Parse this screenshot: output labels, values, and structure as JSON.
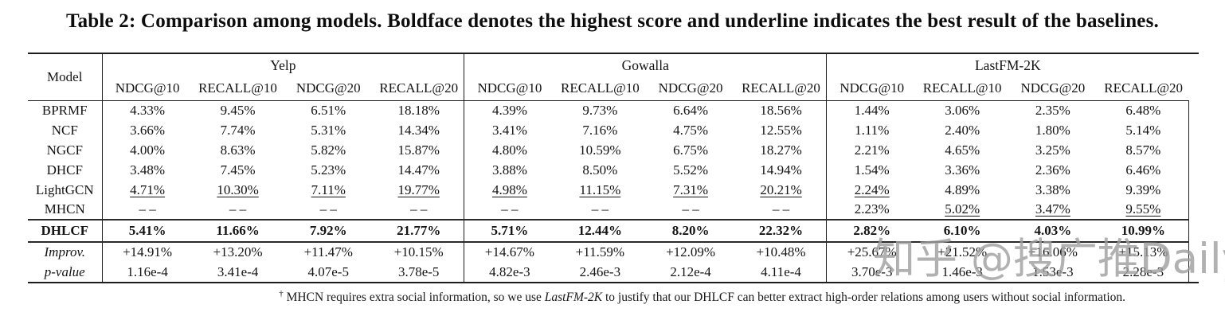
{
  "title": "Table 2: Comparison among models. Boldface denotes the highest score and underline indicates the best result of the baselines.",
  "watermark": {
    "text": "知乎 @搜广推Daily",
    "color": "#9e9e9e"
  },
  "footnote": {
    "dagger": "†",
    "text_before": " MHCN requires extra social information, so we use ",
    "dataset": "LastFM-2K",
    "text_after": " to justify that our DHLCF can better extract high-order relations among users without social information."
  },
  "table": {
    "model_header": "Model",
    "groups": [
      {
        "label": "Yelp",
        "metrics": [
          "NDCG@10",
          "RECALL@10",
          "NDCG@20",
          "RECALL@20"
        ]
      },
      {
        "label": "Gowalla",
        "metrics": [
          "NDCG@10",
          "RECALL@10",
          "NDCG@20",
          "RECALL@20"
        ]
      },
      {
        "label": "LastFM-2K",
        "metrics": [
          "NDCG@10",
          "RECALL@10",
          "NDCG@20",
          "RECALL@20"
        ]
      }
    ],
    "sections": [
      {
        "name": "baselines",
        "rows": [
          {
            "label": "BPRMF",
            "values": [
              "4.33%",
              "9.45%",
              "6.51%",
              "18.18%",
              "4.39%",
              "9.73%",
              "6.64%",
              "18.56%",
              "1.44%",
              "3.06%",
              "2.35%",
              "6.48%"
            ],
            "underline": []
          },
          {
            "label": "NCF",
            "values": [
              "3.66%",
              "7.74%",
              "5.31%",
              "14.34%",
              "3.41%",
              "7.16%",
              "4.75%",
              "12.55%",
              "1.11%",
              "2.40%",
              "1.80%",
              "5.14%"
            ],
            "underline": []
          },
          {
            "label": "NGCF",
            "values": [
              "4.00%",
              "8.63%",
              "5.82%",
              "15.87%",
              "4.80%",
              "10.59%",
              "6.75%",
              "18.27%",
              "2.21%",
              "4.65%",
              "3.25%",
              "8.57%"
            ],
            "underline": []
          },
          {
            "label": "DHCF",
            "values": [
              "3.48%",
              "7.45%",
              "5.23%",
              "14.47%",
              "3.88%",
              "8.50%",
              "5.52%",
              "14.94%",
              "1.54%",
              "3.36%",
              "2.36%",
              "6.46%"
            ],
            "underline": []
          },
          {
            "label": "LightGCN",
            "values": [
              "4.71%",
              "10.30%",
              "7.11%",
              "19.77%",
              "4.98%",
              "11.15%",
              "7.31%",
              "20.21%",
              "2.24%",
              "4.89%",
              "3.38%",
              "9.39%"
            ],
            "underline": [
              0,
              1,
              2,
              3,
              4,
              5,
              6,
              7,
              8
            ]
          },
          {
            "label": "MHCN",
            "values": [
              "– –",
              "– –",
              "– –",
              "– –",
              "– –",
              "– –",
              "– –",
              "– –",
              "2.23%",
              "5.02%",
              "3.47%",
              "9.55%"
            ],
            "underline": [
              9,
              10,
              11
            ]
          }
        ]
      },
      {
        "name": "ours",
        "rows": [
          {
            "label": "DHLCF",
            "bold": true,
            "values": [
              "5.41%",
              "11.66%",
              "7.92%",
              "21.77%",
              "5.71%",
              "12.44%",
              "8.20%",
              "22.32%",
              "2.82%",
              "6.10%",
              "4.03%",
              "10.99%"
            ],
            "underline": []
          }
        ]
      },
      {
        "name": "stats",
        "rows": [
          {
            "label": "Improv.",
            "italic": true,
            "values": [
              "+14.91%",
              "+13.20%",
              "+11.47%",
              "+10.15%",
              "+14.67%",
              "+11.59%",
              "+12.09%",
              "+10.48%",
              "+25.67%",
              "+21.52%",
              "+16.06%",
              "+15.13%"
            ],
            "underline": []
          },
          {
            "label": "p-value",
            "italic": true,
            "values": [
              "1.16e-4",
              "3.41e-4",
              "4.07e-5",
              "3.78e-5",
              "4.82e-3",
              "2.46e-3",
              "2.12e-4",
              "4.11e-4",
              "3.70e-3",
              "1.46e-3",
              "1.53e-3",
              "2.28e-3"
            ],
            "underline": []
          }
        ]
      }
    ]
  }
}
